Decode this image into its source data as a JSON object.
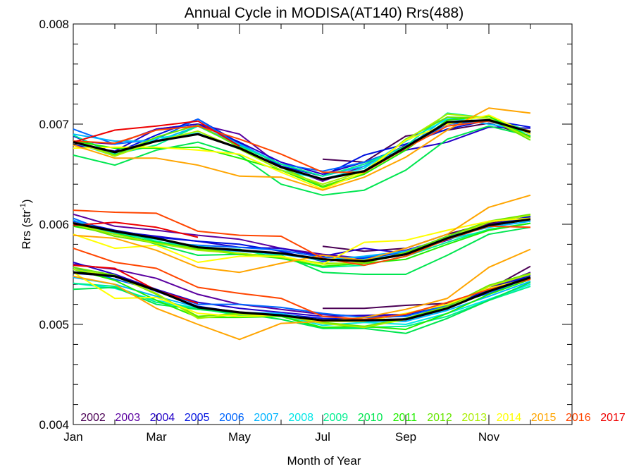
{
  "chart_data": {
    "type": "line",
    "title": "Annual Cycle in MODISA(AT140) Rrs(488)",
    "xlabel": "Month of Year",
    "ylabel": "Rrs (str",
    "ylabel_sup": "-1",
    "ylabel_close": ")",
    "xlim": [
      1,
      13
    ],
    "ylim": [
      0.004,
      0.008
    ],
    "x_ticks": [
      {
        "value": 1,
        "label": "Jan"
      },
      {
        "value": 3,
        "label": "Mar"
      },
      {
        "value": 5,
        "label": "May"
      },
      {
        "value": 7,
        "label": "Jul"
      },
      {
        "value": 9,
        "label": "Sep"
      },
      {
        "value": 11,
        "label": "Nov"
      }
    ],
    "y_ticks": [
      {
        "value": 0.004,
        "label": "0.004"
      },
      {
        "value": 0.005,
        "label": "0.005"
      },
      {
        "value": 0.006,
        "label": "0.006"
      },
      {
        "value": 0.007,
        "label": "0.007"
      },
      {
        "value": 0.008,
        "label": "0.008"
      }
    ],
    "x": [
      1,
      2,
      3,
      4,
      5,
      6,
      7,
      8,
      9,
      10,
      11,
      12
    ],
    "legend_position": "bottom",
    "series": [
      {
        "name": "2002",
        "color": "#4b0055",
        "groups": [
          [
            null,
            null,
            null,
            null,
            null,
            null,
            0.00665,
            0.00662,
            0.00688,
            0.00694,
            0.00701,
            0.00688
          ],
          [
            null,
            null,
            null,
            null,
            null,
            null,
            0.00578,
            0.00573,
            0.00576,
            0.0059,
            0.00601,
            0.00606
          ],
          [
            null,
            null,
            null,
            null,
            null,
            null,
            0.00516,
            0.00516,
            0.00519,
            0.00521,
            0.00535,
            0.00558
          ]
        ]
      },
      {
        "name": "2003",
        "color": "#5a00a0",
        "groups": [
          [
            0.00683,
            0.0068,
            0.00695,
            0.007,
            0.0069,
            0.00658,
            0.00643,
            0.00658,
            0.00679,
            0.007,
            0.00703,
            0.00692
          ],
          [
            0.0061,
            0.00598,
            0.00594,
            0.00589,
            0.00585,
            0.00576,
            0.0057,
            0.00566,
            0.00574,
            0.00586,
            0.006,
            0.00606
          ],
          [
            0.0056,
            0.00555,
            0.00546,
            0.0053,
            0.0052,
            0.00515,
            0.0051,
            0.00508,
            0.0051,
            0.0052,
            0.00536,
            0.00552
          ]
        ]
      },
      {
        "name": "2004",
        "color": "#2200c8",
        "groups": [
          [
            0.00679,
            0.00673,
            0.00695,
            0.007,
            0.00682,
            0.00662,
            0.0065,
            0.00662,
            0.00674,
            0.00682,
            0.00697,
            0.00696
          ],
          [
            0.00598,
            0.00593,
            0.00588,
            0.00583,
            0.00577,
            0.00576,
            0.00568,
            0.00576,
            0.00571,
            0.00584,
            0.00599,
            0.00607
          ],
          [
            0.00562,
            0.0055,
            0.00535,
            0.00522,
            0.00516,
            0.00512,
            0.00508,
            0.00509,
            0.0051,
            0.00518,
            0.00536,
            0.0055
          ]
        ]
      },
      {
        "name": "2005",
        "color": "#0011e0",
        "groups": [
          [
            0.00688,
            0.00671,
            0.00689,
            0.00705,
            0.00681,
            0.00658,
            0.00648,
            0.00669,
            0.0068,
            0.00695,
            0.00704,
            0.00697
          ],
          [
            0.00603,
            0.00594,
            0.00587,
            0.00583,
            0.0058,
            0.00573,
            0.00563,
            0.00566,
            0.00572,
            0.00587,
            0.00599,
            0.00608
          ],
          [
            0.00551,
            0.00548,
            0.00533,
            0.00518,
            0.00512,
            0.0051,
            0.00506,
            0.00505,
            0.00509,
            0.00518,
            0.00534,
            0.00549
          ]
        ]
      },
      {
        "name": "2006",
        "color": "#0066ff",
        "groups": [
          [
            0.00695,
            0.0068,
            0.00685,
            0.00705,
            0.00679,
            0.0066,
            0.00653,
            0.00662,
            0.00677,
            0.007,
            0.00703,
            0.00693
          ],
          [
            0.00606,
            0.0059,
            0.00582,
            0.00579,
            0.00577,
            0.00574,
            0.00567,
            0.00567,
            0.00572,
            0.00588,
            0.00598,
            0.00605
          ],
          [
            0.00557,
            0.00545,
            0.00534,
            0.0052,
            0.0052,
            0.00517,
            0.00511,
            0.00507,
            0.00508,
            0.00519,
            0.00531,
            0.00547
          ]
        ]
      },
      {
        "name": "2007",
        "color": "#00b4ff",
        "groups": [
          [
            0.0069,
            0.00683,
            0.00683,
            0.00698,
            0.0068,
            0.0066,
            0.00648,
            0.00658,
            0.00676,
            0.00707,
            0.007,
            0.00693
          ],
          [
            0.00604,
            0.00591,
            0.00586,
            0.00575,
            0.00573,
            0.0057,
            0.00564,
            0.00568,
            0.00573,
            0.00587,
            0.00597,
            0.00603
          ],
          [
            0.00547,
            0.0054,
            0.00528,
            0.00517,
            0.00512,
            0.00511,
            0.00503,
            0.00503,
            0.00503,
            0.00514,
            0.00528,
            0.00543
          ]
        ]
      },
      {
        "name": "2008",
        "color": "#00e6e6",
        "groups": [
          [
            0.00682,
            0.00668,
            0.00686,
            0.00691,
            0.00675,
            0.00654,
            0.00645,
            0.00656,
            0.00683,
            0.00705,
            0.00703,
            0.0069
          ],
          [
            0.00601,
            0.0059,
            0.00585,
            0.00578,
            0.00574,
            0.00571,
            0.00564,
            0.00565,
            0.0057,
            0.00585,
            0.00594,
            0.00601
          ],
          [
            0.00541,
            0.00536,
            0.00524,
            0.00516,
            0.0051,
            0.00509,
            0.00499,
            0.00502,
            0.005,
            0.00511,
            0.00525,
            0.0054
          ]
        ]
      },
      {
        "name": "2009",
        "color": "#00f090",
        "groups": [
          [
            0.00689,
            0.0067,
            0.00679,
            0.00698,
            0.00678,
            0.0066,
            0.00648,
            0.0066,
            0.00678,
            0.00711,
            0.00706,
            0.00693
          ],
          [
            0.00601,
            0.00593,
            0.00583,
            0.00576,
            0.00575,
            0.00566,
            0.00557,
            0.00559,
            0.00568,
            0.00582,
            0.00595,
            0.00601
          ],
          [
            0.00541,
            0.00538,
            0.00522,
            0.00516,
            0.00509,
            0.00508,
            0.00496,
            0.00497,
            0.00498,
            0.00508,
            0.00524,
            0.00538
          ]
        ]
      },
      {
        "name": "2010",
        "color": "#00e650",
        "groups": [
          [
            0.00669,
            0.00659,
            0.00674,
            0.00682,
            0.00669,
            0.0064,
            0.00629,
            0.00634,
            0.00654,
            0.00685,
            0.00698,
            0.00688
          ],
          [
            0.00601,
            0.00592,
            0.0058,
            0.00569,
            0.0057,
            0.00569,
            0.00552,
            0.0055,
            0.0055,
            0.00569,
            0.0059,
            0.00597
          ],
          [
            0.00535,
            0.00537,
            0.0052,
            0.00515,
            0.00511,
            0.00505,
            0.00496,
            0.00496,
            0.00491,
            0.00506,
            0.00524,
            0.00542
          ]
        ]
      },
      {
        "name": "2011",
        "color": "#22ee00",
        "groups": [
          [
            0.00683,
            0.00676,
            0.00676,
            0.00677,
            0.00666,
            0.00654,
            0.00637,
            0.0065,
            0.00674,
            0.00704,
            0.00708,
            0.00687
          ],
          [
            0.00598,
            0.0059,
            0.00582,
            0.00575,
            0.0057,
            0.00566,
            0.00558,
            0.00561,
            0.00565,
            0.0058,
            0.00594,
            0.00601
          ],
          [
            0.00555,
            0.00544,
            0.00524,
            0.00507,
            0.00507,
            0.00508,
            0.00497,
            0.00498,
            0.00495,
            0.00511,
            0.0053,
            0.00545
          ]
        ]
      },
      {
        "name": "2012",
        "color": "#66e600",
        "groups": [
          [
            0.00683,
            0.00669,
            0.00687,
            0.00699,
            0.00677,
            0.00657,
            0.00638,
            0.00651,
            0.00685,
            0.00707,
            0.00706,
            0.00684
          ],
          [
            0.006,
            0.00588,
            0.00581,
            0.00576,
            0.00571,
            0.00567,
            0.00561,
            0.00561,
            0.00572,
            0.00588,
            0.00603,
            0.0061
          ],
          [
            0.00557,
            0.00549,
            0.0053,
            0.00508,
            0.00511,
            0.00509,
            0.00502,
            0.00498,
            0.00506,
            0.00518,
            0.00539,
            0.00551
          ]
        ]
      },
      {
        "name": "2013",
        "color": "#aaee00",
        "groups": [
          [
            0.00683,
            0.00668,
            0.00683,
            0.00693,
            0.00675,
            0.00654,
            0.0064,
            0.00653,
            0.00684,
            0.0071,
            0.00706,
            0.00686
          ],
          [
            0.006,
            0.0059,
            0.00581,
            0.00574,
            0.00571,
            0.00567,
            0.0056,
            0.00562,
            0.0057,
            0.00586,
            0.00602,
            0.00609
          ],
          [
            0.00555,
            0.00548,
            0.00531,
            0.00506,
            0.0051,
            0.00509,
            0.00501,
            0.00497,
            0.00505,
            0.00516,
            0.00538,
            0.0055
          ]
        ]
      },
      {
        "name": "2014",
        "color": "#ffff00",
        "groups": [
          [
            0.00676,
            0.00677,
            0.00677,
            0.00674,
            0.0067,
            0.00652,
            0.00635,
            0.00652,
            0.00684,
            0.007,
            0.00709,
            0.0069
          ],
          [
            0.0059,
            0.00576,
            0.00579,
            0.00562,
            0.00568,
            0.00568,
            0.0056,
            0.00582,
            0.00584,
            0.00594,
            0.00603,
            0.00606
          ],
          [
            0.00552,
            0.00526,
            0.00527,
            0.00511,
            0.00508,
            0.00509,
            0.00503,
            0.00503,
            0.00511,
            0.0052,
            0.00536,
            0.00546
          ]
        ]
      },
      {
        "name": "2015",
        "color": "#ffa500",
        "groups": [
          [
            0.00679,
            0.00666,
            0.00666,
            0.00659,
            0.00648,
            0.00647,
            0.00634,
            0.00647,
            0.00667,
            0.00694,
            0.00716,
            0.00711
          ],
          [
            0.00589,
            0.00586,
            0.00574,
            0.00557,
            0.00552,
            0.00561,
            0.00569,
            0.00564,
            0.00576,
            0.0059,
            0.00617,
            0.00629
          ],
          [
            0.00548,
            0.0054,
            0.00516,
            0.005,
            0.00485,
            0.00501,
            0.00503,
            0.00507,
            0.00515,
            0.00526,
            0.00557,
            0.00575
          ]
        ]
      },
      {
        "name": "2016",
        "color": "#ff4500",
        "groups": [
          [
            0.00683,
            0.00681,
            0.00694,
            0.00698,
            0.00685,
            0.0067,
            0.00652,
            0.00652,
            0.00676,
            0.00698,
            0.00703,
            0.00693
          ],
          [
            0.00614,
            0.00612,
            0.00611,
            0.00593,
            0.00589,
            0.00588,
            0.00566,
            0.00559,
            0.00568,
            0.00585,
            0.00598,
            0.00597
          ],
          [
            0.00576,
            0.00562,
            0.00556,
            0.00537,
            0.00531,
            0.00526,
            0.00508,
            0.00505,
            0.0051,
            0.00522,
            0.00535,
            0.00545
          ]
        ]
      },
      {
        "name": "2017",
        "color": "#ee0000",
        "groups": [
          [
            0.00682,
            0.00694,
            0.00698,
            0.00703,
            0.00678,
            null,
            null,
            null,
            null,
            null,
            null,
            null
          ],
          [
            0.00599,
            0.00602,
            0.00597,
            0.00587,
            null,
            null,
            null,
            null,
            null,
            null,
            null,
            null
          ],
          [
            0.00559,
            0.00556,
            0.00534,
            0.00521,
            null,
            null,
            null,
            null,
            null,
            null,
            null,
            null
          ]
        ]
      }
    ],
    "mean": {
      "color": "#000000",
      "groups": [
        [
          0.00682,
          0.00672,
          0.00683,
          0.0069,
          0.00676,
          0.00657,
          0.00645,
          0.00653,
          0.00677,
          0.00702,
          0.00704,
          0.00692
        ],
        [
          0.00601,
          0.00593,
          0.00586,
          0.00577,
          0.00574,
          0.00571,
          0.00565,
          0.00563,
          0.0057,
          0.00586,
          0.00599,
          0.00605
        ],
        [
          0.00552,
          0.00548,
          0.00534,
          0.00517,
          0.00512,
          0.00509,
          0.00504,
          0.00504,
          0.00505,
          0.00516,
          0.00533,
          0.00547
        ]
      ]
    }
  }
}
